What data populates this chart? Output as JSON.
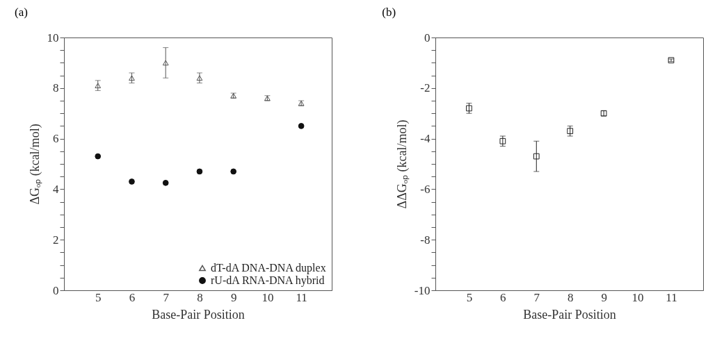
{
  "chart_data": [
    {
      "type": "scatter",
      "title": "(a)",
      "xlabel": "Base-Pair Position",
      "ylabel": "ΔGₒₚ (kcal/mol)",
      "xlim": [
        4,
        11.9
      ],
      "ylim": [
        0,
        10
      ],
      "xticks": [
        5,
        6,
        7,
        8,
        9,
        10,
        11
      ],
      "yticks": [
        0,
        {
          "value": 0.5,
          "label": null
        },
        {
          "value": 1,
          "label": null
        },
        {
          "value": 1.5,
          "label": null
        },
        2,
        {
          "value": 2.5,
          "label": null
        },
        {
          "value": 3,
          "label": null
        },
        {
          "value": 3.5,
          "label": null
        },
        4,
        {
          "value": 4.5,
          "label": null
        },
        {
          "value": 5,
          "label": null
        },
        {
          "value": 5.5,
          "label": null
        },
        6,
        {
          "value": 6.5,
          "label": null
        },
        {
          "value": 7,
          "label": null
        },
        {
          "value": 7.5,
          "label": null
        },
        8,
        {
          "value": 8.5,
          "label": null
        },
        {
          "value": 9,
          "label": null
        },
        {
          "value": 9.5,
          "label": null
        },
        10
      ],
      "legend": "bottom right",
      "series": [
        {
          "name": "dT-dA DNA-DNA duplex",
          "color": "#555555",
          "marker": "triangle",
          "x": [
            5,
            6,
            7,
            8,
            9,
            10,
            11
          ],
          "values": [
            8.1,
            8.4,
            9.0,
            8.4,
            7.7,
            7.6,
            7.4
          ],
          "errors": [
            0.2,
            0.2,
            0.6,
            0.2,
            0.1,
            0.1,
            0.1
          ]
        },
        {
          "name": "rU-dA RNA-DNA hybrid",
          "color": "#111111",
          "marker": "circle",
          "x": [
            5,
            6,
            7,
            8,
            9,
            10,
            11
          ],
          "values": [
            5.3,
            4.3,
            4.25,
            4.7,
            4.7,
            null,
            6.5
          ]
        }
      ]
    },
    {
      "type": "scatter",
      "title": "(b)",
      "xlabel": "Base-Pair Position",
      "ylabel": "ΔΔGₒₚ (kcal/mol)",
      "xlim": [
        4,
        11.95
      ],
      "ylim": [
        -10,
        0
      ],
      "xticks": [
        5,
        6,
        7,
        8,
        9,
        10,
        11
      ],
      "yticks": [
        -10,
        {
          "value": -9.5,
          "label": null
        },
        {
          "value": -9,
          "label": null
        },
        {
          "value": -8.5,
          "label": null
        },
        -8,
        {
          "value": -7.5,
          "label": null
        },
        {
          "value": -7,
          "label": null
        },
        {
          "value": -6.5,
          "label": null
        },
        -6,
        {
          "value": -5.5,
          "label": null
        },
        {
          "value": -5,
          "label": null
        },
        {
          "value": -4.5,
          "label": null
        },
        -4,
        {
          "value": -3.5,
          "label": null
        },
        {
          "value": -3,
          "label": null
        },
        {
          "value": -2.5,
          "label": null
        },
        -2,
        {
          "value": -1.5,
          "label": null
        },
        {
          "value": -1,
          "label": null
        },
        {
          "value": -0.5,
          "label": null
        },
        0
      ],
      "series": [
        {
          "color": "#222222",
          "marker": "square",
          "x": [
            5,
            6,
            7,
            8,
            9,
            10,
            11
          ],
          "values": [
            -2.8,
            -4.1,
            -4.7,
            -3.7,
            -3.0,
            null,
            -0.9
          ],
          "errors": [
            0.2,
            0.2,
            0.6,
            0.2,
            0.1,
            null,
            0.05
          ]
        }
      ]
    }
  ]
}
